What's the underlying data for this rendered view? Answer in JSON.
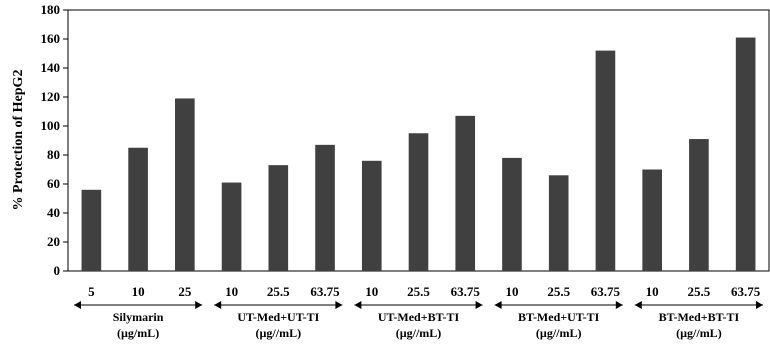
{
  "chart_data": {
    "type": "bar",
    "ylabel": "% Protection of HepG2",
    "ylim": [
      0,
      180
    ],
    "yticks": [
      0,
      20,
      40,
      60,
      80,
      100,
      120,
      140,
      160,
      180
    ],
    "grid": false,
    "bar_color": "#404040",
    "groups": [
      {
        "label_line1": "Silymarin",
        "label_line2": "(µg/mL)",
        "categories": [
          "5",
          "10",
          "25"
        ],
        "values": [
          56,
          85,
          119
        ]
      },
      {
        "label_line1": "UT-Med+UT-TI",
        "label_line2": "(µg//mL)",
        "categories": [
          "10",
          "25.5",
          "63.75"
        ],
        "values": [
          61,
          73,
          87
        ]
      },
      {
        "label_line1": "UT-Med+BT-TI",
        "label_line2": "(µg//mL)",
        "categories": [
          "10",
          "25.5",
          "63.75"
        ],
        "values": [
          76,
          95,
          107
        ]
      },
      {
        "label_line1": "BT-Med+UT-TI",
        "label_line2": "(µg//mL)",
        "categories": [
          "10",
          "25.5",
          "63.75"
        ],
        "values": [
          78,
          66,
          152
        ]
      },
      {
        "label_line1": "BT-Med+BT-TI",
        "label_line2": "(µg//mL)",
        "categories": [
          "10",
          "25.5",
          "63.75"
        ],
        "values": [
          70,
          91,
          161
        ]
      }
    ]
  }
}
